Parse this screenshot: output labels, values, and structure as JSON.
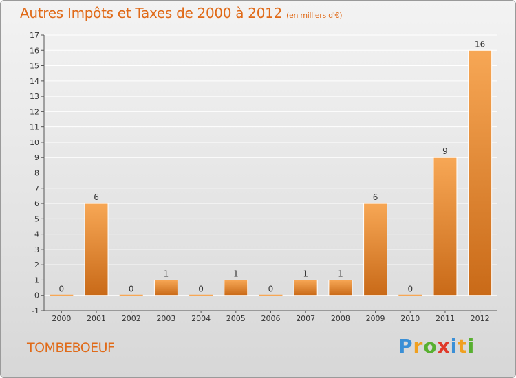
{
  "header": {
    "title": "Autres Impôts et Taxes de 2000 à 2012",
    "subtitle": "(en milliers d'€)"
  },
  "footer": {
    "town": "TOMBEBOEUF",
    "logo_letters": [
      "P",
      "r",
      "o",
      "x",
      "i",
      "t",
      "i"
    ],
    "logo_colors": [
      "#3a8fd6",
      "#f0a020",
      "#58b030",
      "#e03a2a",
      "#3a8fd6",
      "#f0a020",
      "#58b030"
    ]
  },
  "colors": {
    "bar_light": "#f7a755",
    "bar_dark": "#c96a18",
    "axis": "#555555",
    "grid": "#ffffff",
    "accent": "#e06a18"
  },
  "chart_data": {
    "type": "bar",
    "title": "Autres Impôts et Taxes de 2000 à 2012",
    "subtitle": "(en milliers d'€)",
    "categories": [
      "2000",
      "2001",
      "2002",
      "2003",
      "2004",
      "2005",
      "2006",
      "2007",
      "2008",
      "2009",
      "2010",
      "2011",
      "2012"
    ],
    "values": [
      0,
      6,
      0,
      1,
      0,
      1,
      0,
      1,
      1,
      6,
      0,
      9,
      16
    ],
    "data_labels": [
      "0",
      "6",
      "0",
      "1",
      "0",
      "1",
      "0",
      "1",
      "1",
      "6",
      "0",
      "9",
      "16"
    ],
    "ylim": [
      -1,
      17
    ],
    "yticks": [
      -1,
      0,
      1,
      2,
      3,
      4,
      5,
      6,
      7,
      8,
      9,
      10,
      11,
      12,
      13,
      14,
      15,
      16,
      17
    ],
    "ytick_labels": [
      "-1",
      "0",
      "1",
      "2",
      "3",
      "4",
      "5",
      "6",
      "7",
      "8",
      "9",
      "10",
      "11",
      "12",
      "13",
      "14",
      "15",
      "16",
      "17"
    ],
    "grid": true,
    "legend": "none"
  }
}
